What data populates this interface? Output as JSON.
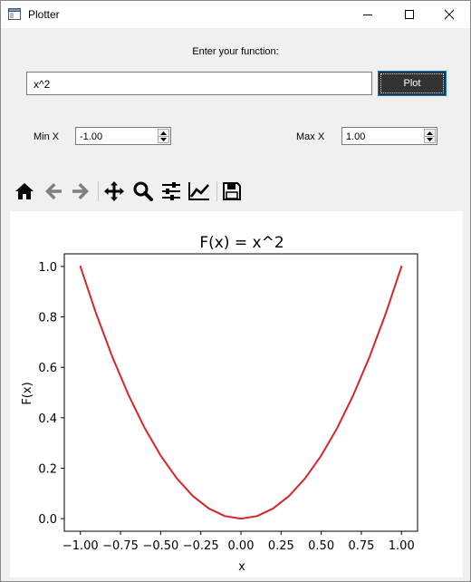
{
  "window": {
    "title": "Plotter",
    "controls": {
      "minimize": "minimize",
      "maximize": "maximize",
      "close": "close"
    }
  },
  "form": {
    "prompt_label": "Enter your function:",
    "function_value": "x^2",
    "plot_button": "Plot",
    "min_label": "Min X",
    "min_value": "-1.00",
    "max_label": "Max X",
    "max_value": "1.00"
  },
  "toolbar": {
    "icons": [
      "home-icon",
      "back-arrow-icon",
      "forward-arrow-icon",
      "pan-icon",
      "zoom-icon",
      "configure-subplots-icon",
      "edit-axis-icon",
      "save-icon"
    ]
  },
  "chart_data": {
    "type": "line",
    "title": "F(x) = x^2",
    "xlabel": "x",
    "ylabel": "F(x)",
    "xlim": [
      -1.1,
      1.1
    ],
    "ylim": [
      -0.05,
      1.05
    ],
    "xticks": [
      "−1.00",
      "−0.75",
      "−0.50",
      "−0.25",
      "0.00",
      "0.25",
      "0.50",
      "0.75",
      "1.00"
    ],
    "xtick_values": [
      -1.0,
      -0.75,
      -0.5,
      -0.25,
      0.0,
      0.25,
      0.5,
      0.75,
      1.0
    ],
    "yticks": [
      "0.0",
      "0.2",
      "0.4",
      "0.6",
      "0.8",
      "1.0"
    ],
    "ytick_values": [
      0.0,
      0.2,
      0.4,
      0.6,
      0.8,
      1.0
    ],
    "series": [
      {
        "color": "#d62728",
        "x": [
          -1.0,
          -0.9,
          -0.8,
          -0.7,
          -0.6,
          -0.5,
          -0.4,
          -0.3,
          -0.2,
          -0.1,
          0.0,
          0.1,
          0.2,
          0.3,
          0.4,
          0.5,
          0.6,
          0.7,
          0.8,
          0.9,
          1.0
        ],
        "y": [
          1.0,
          0.81,
          0.64,
          0.49,
          0.36,
          0.25,
          0.16,
          0.09,
          0.04,
          0.01,
          0.0,
          0.01,
          0.04,
          0.09,
          0.16,
          0.25,
          0.36,
          0.49,
          0.64,
          0.81,
          1.0
        ]
      }
    ],
    "grid": false,
    "legend": "none"
  }
}
